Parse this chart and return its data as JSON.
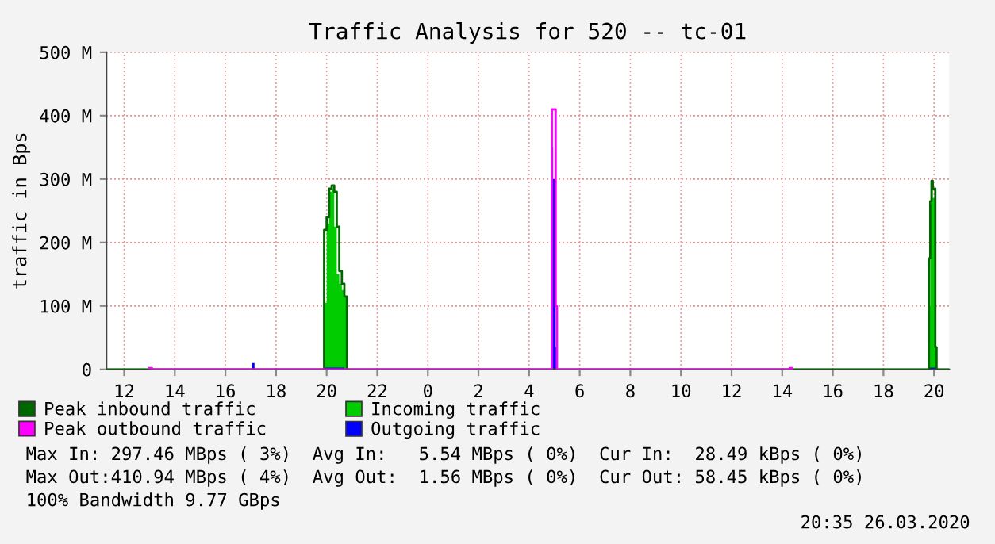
{
  "chart_data": {
    "type": "area",
    "title": "Traffic Analysis for 520 -- tc-01",
    "ylabel": "traffic in Bps",
    "xlim": [
      "2020-03-25T11:18",
      "2020-03-26T20:36"
    ],
    "ylim": [
      0,
      500
    ],
    "xticks": [
      {
        "value": "2020-03-25T12:00",
        "label": "12"
      },
      {
        "value": "2020-03-25T14:00",
        "label": "14"
      },
      {
        "value": "2020-03-25T16:00",
        "label": "16"
      },
      {
        "value": "2020-03-25T18:00",
        "label": "18"
      },
      {
        "value": "2020-03-25T20:00",
        "label": "20"
      },
      {
        "value": "2020-03-25T22:00",
        "label": "22"
      },
      {
        "value": "2020-03-26T00:00",
        "label": "0"
      },
      {
        "value": "2020-03-26T02:00",
        "label": "2"
      },
      {
        "value": "2020-03-26T04:00",
        "label": "4"
      },
      {
        "value": "2020-03-26T06:00",
        "label": "6"
      },
      {
        "value": "2020-03-26T08:00",
        "label": "8"
      },
      {
        "value": "2020-03-26T10:00",
        "label": "10"
      },
      {
        "value": "2020-03-26T12:00",
        "label": "12"
      },
      {
        "value": "2020-03-26T14:00",
        "label": "14"
      },
      {
        "value": "2020-03-26T16:00",
        "label": "16"
      },
      {
        "value": "2020-03-26T18:00",
        "label": "18"
      },
      {
        "value": "2020-03-26T20:00",
        "label": "20"
      }
    ],
    "yticks": [
      0,
      {
        "value": 100,
        "label": "100 M"
      },
      {
        "value": 200,
        "label": "200 M"
      },
      {
        "value": 300,
        "label": "300 M"
      },
      {
        "value": 400,
        "label": "400 M"
      },
      {
        "value": 500,
        "label": "500 M"
      }
    ],
    "grid": true,
    "legend": "bottom",
    "series": [
      {
        "name": "Peak inbound traffic",
        "type": "step",
        "color": "#006600",
        "x": [
          "2020-03-25T11:18",
          "2020-03-25T19:54",
          "2020-03-25T20:00",
          "2020-03-25T20:06",
          "2020-03-25T20:12",
          "2020-03-25T20:18",
          "2020-03-25T20:24",
          "2020-03-25T20:30",
          "2020-03-25T20:36",
          "2020-03-25T20:42",
          "2020-03-25T20:48",
          "2020-03-26T19:48",
          "2020-03-26T19:51",
          "2020-03-26T19:54",
          "2020-03-26T19:57",
          "2020-03-26T20:03",
          "2020-03-26T20:06",
          "2020-03-26T20:36"
        ],
        "values": [
          0,
          220,
          240,
          285,
          290,
          280,
          225,
          155,
          135,
          115,
          0,
          175,
          265,
          297,
          285,
          35,
          0,
          0
        ]
      },
      {
        "name": "Peak outbound traffic",
        "type": "step",
        "color": "#ff00ff",
        "x": [
          "2020-03-25T13:00",
          "2020-03-25T13:06",
          "2020-03-26T04:51",
          "2020-03-26T04:54",
          "2020-03-26T05:03",
          "2020-03-26T05:06",
          "2020-03-26T14:18",
          "2020-03-26T14:24"
        ],
        "values": [
          2,
          0,
          0,
          410,
          100,
          0,
          2,
          0
        ]
      },
      {
        "name": "Incoming traffic",
        "color": "#00cc00",
        "x": [
          "2020-03-25T11:18",
          "2020-03-25T19:54",
          "2020-03-25T20:00",
          "2020-03-25T20:06",
          "2020-03-25T20:12",
          "2020-03-25T20:18",
          "2020-03-25T20:24",
          "2020-03-25T20:30",
          "2020-03-25T20:36",
          "2020-03-25T20:42",
          "2020-03-25T20:48",
          "2020-03-26T19:48",
          "2020-03-26T19:51",
          "2020-03-26T19:54",
          "2020-03-26T19:57",
          "2020-03-26T20:03",
          "2020-03-26T20:06",
          "2020-03-26T20:36"
        ],
        "values": [
          0,
          105,
          230,
          280,
          285,
          225,
          150,
          135,
          125,
          115,
          0,
          100,
          260,
          290,
          270,
          30,
          0,
          0
        ]
      },
      {
        "name": "Outgoing traffic",
        "color": "#0000ff",
        "x": [
          "2020-03-25T11:18",
          "2020-03-25T17:03",
          "2020-03-25T17:09",
          "2020-03-25T19:54",
          "2020-03-25T20:42",
          "2020-03-26T04:51",
          "2020-03-26T04:54",
          "2020-03-26T04:57",
          "2020-03-26T05:03",
          "2020-03-26T05:06",
          "2020-03-26T19:48",
          "2020-03-26T20:06",
          "2020-03-26T20:36"
        ],
        "values": [
          0,
          10,
          0,
          3,
          0,
          0,
          350,
          300,
          35,
          0,
          3,
          0,
          0
        ]
      }
    ],
    "annotations": [
      "Max In: 297.46 MBps ( 3%)  Avg In:   5.54 MBps ( 0%)  Cur In:  28.49 kBps ( 0%)",
      "Max Out:410.94 MBps ( 4%)  Avg Out:  1.56 MBps ( 0%)  Cur Out: 58.45 kBps ( 0%)",
      "100% Bandwidth 9.77 GBps",
      "20:35 26.03.2020"
    ]
  }
}
